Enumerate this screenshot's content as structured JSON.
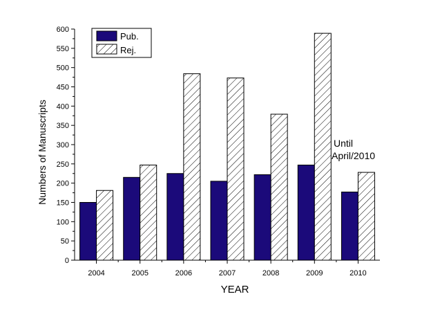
{
  "chart_data": {
    "type": "bar",
    "title": "",
    "xlabel": "YEAR",
    "ylabel": "Numbers of Manuscripts",
    "ylim": [
      0,
      600
    ],
    "yticks": [
      0,
      50,
      100,
      150,
      200,
      250,
      300,
      350,
      400,
      450,
      500,
      550,
      600
    ],
    "categories": [
      "2004",
      "2005",
      "2006",
      "2007",
      "2008",
      "2009",
      "2010"
    ],
    "series": [
      {
        "name": "Pub.",
        "values": [
          150,
          215,
          225,
          205,
          222,
          247,
          177
        ],
        "color": "#1b0a7a",
        "fill": "solid"
      },
      {
        "name": "Rej.",
        "values": [
          181,
          247,
          484,
          473,
          379,
          589,
          228
        ],
        "color": "#ffffff",
        "fill": "hatched"
      }
    ],
    "legend_position": "top-left",
    "annotation": [
      "Until",
      "April/2010"
    ],
    "grid": false
  }
}
